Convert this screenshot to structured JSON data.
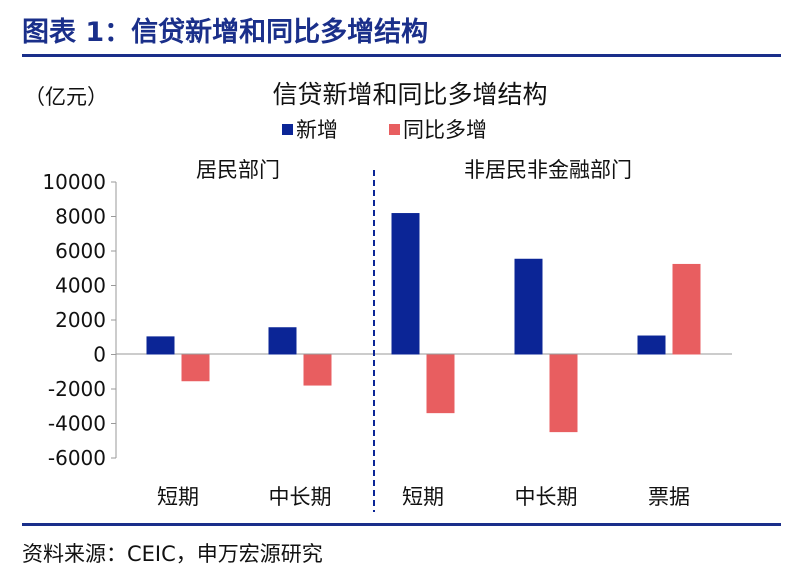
{
  "header": {
    "title": "图表 1：信贷新增和同比多增结构"
  },
  "footer": {
    "source": "资料来源：CEIC，申万宏源研究"
  },
  "colors": {
    "brand": "#1a2f8a",
    "series_new": "#0b2596",
    "series_yoy": "#e85e60"
  },
  "chart_data": {
    "type": "bar",
    "title": "信贷新增和同比多增结构",
    "unit_label": "（亿元）",
    "legend_position": "top-center",
    "grid": false,
    "groups": [
      {
        "label": "居民部门",
        "categories": [
          "短期",
          "中长期"
        ]
      },
      {
        "label": "非居民非金融部门",
        "categories": [
          "短期",
          "中长期",
          "票据"
        ]
      }
    ],
    "categories": [
      "短期",
      "中长期",
      "短期",
      "中长期",
      "票据"
    ],
    "series": [
      {
        "name": "新增",
        "values": [
          1050,
          1580,
          8200,
          5550,
          1100
        ]
      },
      {
        "name": "同比多增",
        "values": [
          -1550,
          -1800,
          -3400,
          -4500,
          5250
        ]
      }
    ],
    "ylim": [
      -6000,
      10000
    ],
    "yticks": [
      "10000",
      "8000",
      "6000",
      "4000",
      "2000",
      "0",
      "-2000",
      "-4000",
      "-6000"
    ],
    "xlabel": "",
    "ylabel": ""
  }
}
